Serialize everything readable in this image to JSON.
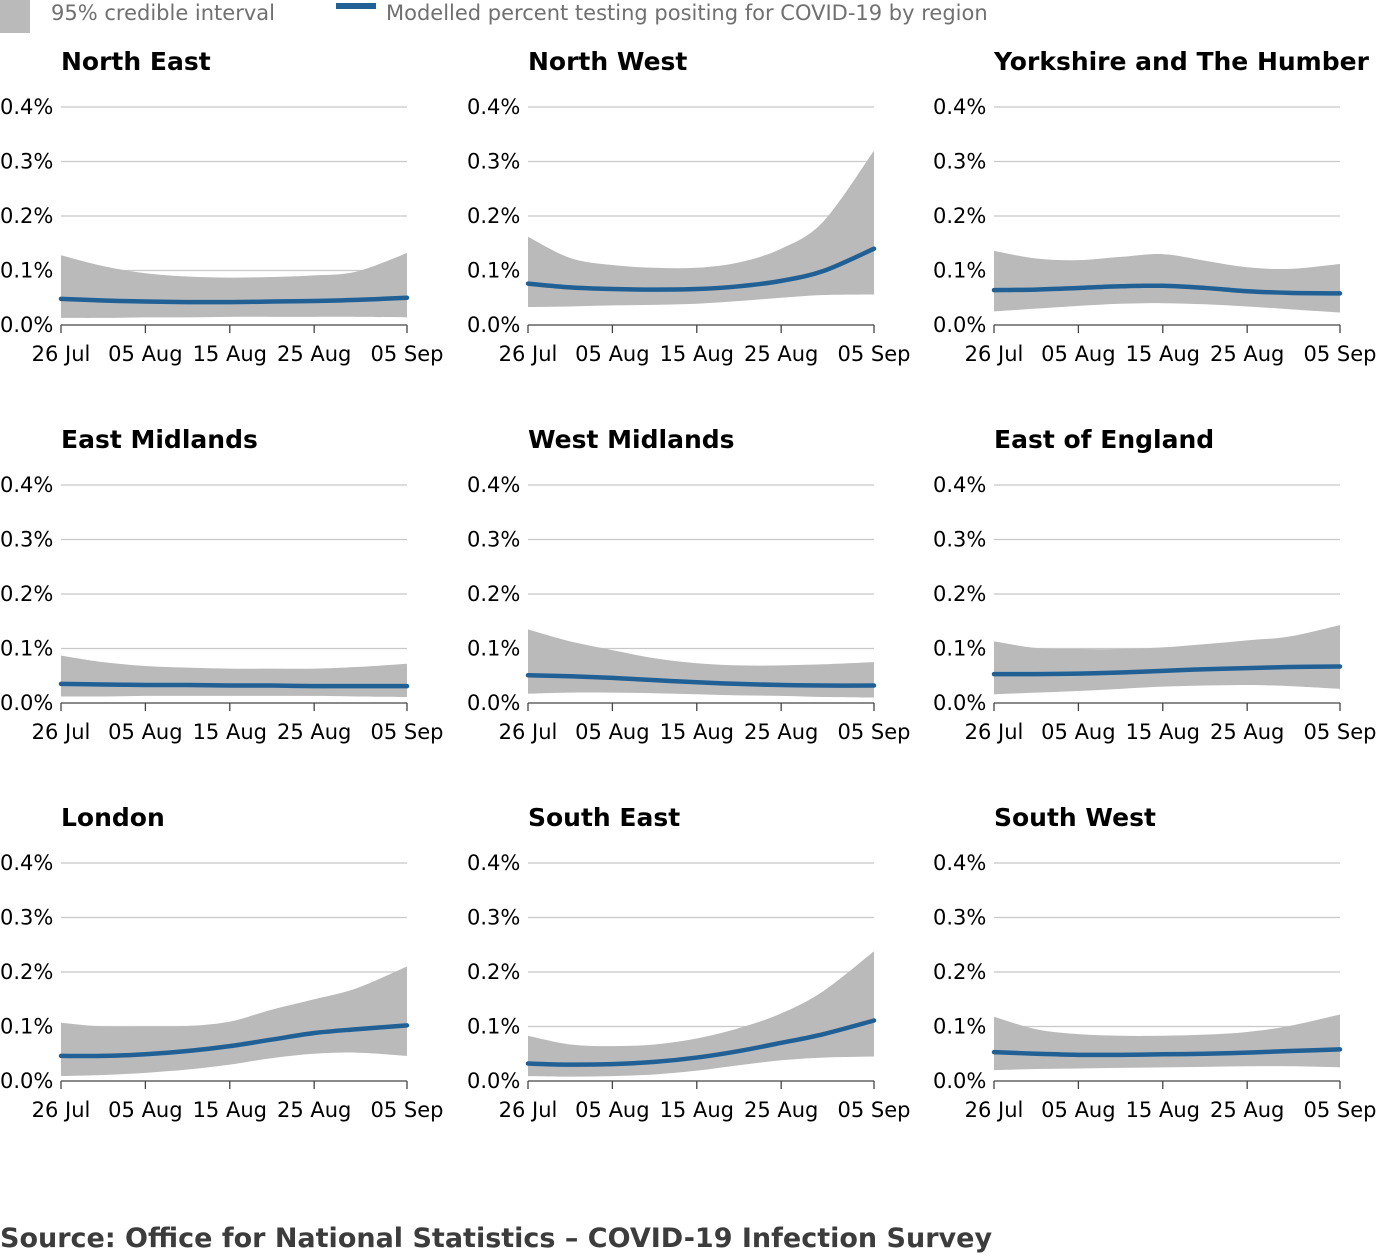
{
  "legend": {
    "band_label": "95% credible interval",
    "line_label": "Modelled percent testing positing for COVID-19 by region"
  },
  "source": "Source: Office for National Statistics – COVID-19 Infection Survey",
  "colors": {
    "band": "#bababa",
    "line": "#206095",
    "grid": "#c8c8c8",
    "axis": "#444444"
  },
  "chart_data": {
    "type": "area",
    "layout": "small-multiples 3x3",
    "x_ticks": [
      "26 Jul",
      "05 Aug",
      "15 Aug",
      "25 Aug",
      "05 Sep"
    ],
    "x_tick_days": [
      0,
      10,
      20,
      30,
      41
    ],
    "x_range_days": [
      0,
      41
    ],
    "x_start_date": "26 Jul",
    "y_ticks": [
      "0.0%",
      "0.1%",
      "0.2%",
      "0.3%",
      "0.4%"
    ],
    "ylim": [
      0,
      0.4
    ],
    "grid": true,
    "legend_position": "top",
    "x_days": [
      0,
      5,
      10,
      15,
      20,
      25,
      30,
      35,
      41
    ],
    "panels": [
      {
        "title": "North East",
        "series": [
          {
            "name": "Modelled percent testing positing for COVID-19 by region",
            "values": [
              0.048,
              0.045,
              0.043,
              0.042,
              0.042,
              0.043,
              0.044,
              0.046,
              0.05
            ]
          },
          {
            "name": "95% credible interval lower",
            "values": [
              0.013,
              0.013,
              0.014,
              0.014,
              0.015,
              0.015,
              0.015,
              0.015,
              0.014
            ]
          },
          {
            "name": "95% credible interval upper",
            "values": [
              0.128,
              0.108,
              0.095,
              0.089,
              0.087,
              0.088,
              0.091,
              0.098,
              0.132
            ]
          }
        ]
      },
      {
        "title": "North West",
        "series": [
          {
            "name": "Modelled percent testing positing for COVID-19 by region",
            "values": [
              0.076,
              0.069,
              0.066,
              0.065,
              0.066,
              0.071,
              0.081,
              0.099,
              0.14
            ]
          },
          {
            "name": "95% credible interval lower",
            "values": [
              0.033,
              0.034,
              0.036,
              0.037,
              0.039,
              0.044,
              0.05,
              0.055,
              0.056
            ]
          },
          {
            "name": "95% credible interval upper",
            "values": [
              0.162,
              0.123,
              0.11,
              0.105,
              0.105,
              0.115,
              0.14,
              0.19,
              0.32
            ]
          }
        ]
      },
      {
        "title": "Yorkshire and The Humber",
        "series": [
          {
            "name": "Modelled percent testing positing for COVID-19 by region",
            "values": [
              0.064,
              0.065,
              0.068,
              0.071,
              0.072,
              0.068,
              0.062,
              0.059,
              0.058
            ]
          },
          {
            "name": "95% credible interval lower",
            "values": [
              0.025,
              0.03,
              0.035,
              0.039,
              0.04,
              0.038,
              0.034,
              0.029,
              0.023
            ]
          },
          {
            "name": "95% credible interval upper",
            "values": [
              0.136,
              0.122,
              0.119,
              0.125,
              0.13,
              0.118,
              0.106,
              0.103,
              0.112
            ]
          }
        ]
      },
      {
        "title": "East Midlands",
        "series": [
          {
            "name": "Modelled percent testing positing for COVID-19 by region",
            "values": [
              0.035,
              0.034,
              0.033,
              0.033,
              0.032,
              0.032,
              0.031,
              0.031,
              0.031
            ]
          },
          {
            "name": "95% credible interval lower",
            "values": [
              0.012,
              0.012,
              0.013,
              0.013,
              0.013,
              0.013,
              0.013,
              0.012,
              0.011
            ]
          },
          {
            "name": "95% credible interval upper",
            "values": [
              0.087,
              0.075,
              0.068,
              0.065,
              0.063,
              0.063,
              0.063,
              0.066,
              0.072
            ]
          }
        ]
      },
      {
        "title": "West Midlands",
        "series": [
          {
            "name": "Modelled percent testing positing for COVID-19 by region",
            "values": [
              0.051,
              0.049,
              0.046,
              0.042,
              0.038,
              0.035,
              0.033,
              0.032,
              0.032
            ]
          },
          {
            "name": "95% credible interval lower",
            "values": [
              0.017,
              0.019,
              0.019,
              0.018,
              0.016,
              0.014,
              0.013,
              0.011,
              0.01
            ]
          },
          {
            "name": "95% credible interval upper",
            "values": [
              0.135,
              0.113,
              0.097,
              0.082,
              0.073,
              0.069,
              0.069,
              0.071,
              0.075
            ]
          }
        ]
      },
      {
        "title": "East of England",
        "series": [
          {
            "name": "Modelled percent testing positing for COVID-19 by region",
            "values": [
              0.053,
              0.053,
              0.054,
              0.056,
              0.059,
              0.062,
              0.064,
              0.066,
              0.067
            ]
          },
          {
            "name": "95% credible interval lower",
            "values": [
              0.016,
              0.019,
              0.022,
              0.026,
              0.03,
              0.032,
              0.033,
              0.031,
              0.026
            ]
          },
          {
            "name": "95% credible interval upper",
            "values": [
              0.113,
              0.101,
              0.099,
              0.099,
              0.102,
              0.108,
              0.115,
              0.122,
              0.143
            ]
          }
        ]
      },
      {
        "title": "London",
        "series": [
          {
            "name": "Modelled percent testing positing for COVID-19 by region",
            "values": [
              0.046,
              0.046,
              0.049,
              0.055,
              0.064,
              0.076,
              0.088,
              0.095,
              0.102
            ]
          },
          {
            "name": "95% credible interval lower",
            "values": [
              0.009,
              0.011,
              0.015,
              0.021,
              0.03,
              0.042,
              0.05,
              0.052,
              0.046
            ]
          },
          {
            "name": "95% credible interval upper",
            "values": [
              0.107,
              0.1,
              0.1,
              0.101,
              0.109,
              0.131,
              0.15,
              0.17,
              0.21
            ]
          }
        ]
      },
      {
        "title": "South East",
        "series": [
          {
            "name": "Modelled percent testing positing for COVID-19 by region",
            "values": [
              0.032,
              0.03,
              0.031,
              0.035,
              0.043,
              0.055,
              0.07,
              0.086,
              0.111
            ]
          },
          {
            "name": "95% credible interval lower",
            "values": [
              0.009,
              0.008,
              0.009,
              0.012,
              0.019,
              0.029,
              0.038,
              0.043,
              0.045
            ]
          },
          {
            "name": "95% credible interval upper",
            "values": [
              0.083,
              0.067,
              0.064,
              0.067,
              0.078,
              0.097,
              0.124,
              0.165,
              0.238
            ]
          }
        ]
      },
      {
        "title": "South West",
        "series": [
          {
            "name": "Modelled percent testing positing for COVID-19 by region",
            "values": [
              0.053,
              0.05,
              0.048,
              0.048,
              0.049,
              0.05,
              0.052,
              0.055,
              0.058
            ]
          },
          {
            "name": "95% credible interval lower",
            "values": [
              0.02,
              0.022,
              0.023,
              0.024,
              0.025,
              0.026,
              0.027,
              0.027,
              0.025
            ]
          },
          {
            "name": "95% credible interval upper",
            "values": [
              0.118,
              0.095,
              0.086,
              0.083,
              0.083,
              0.085,
              0.09,
              0.101,
              0.122
            ]
          }
        ]
      }
    ]
  }
}
